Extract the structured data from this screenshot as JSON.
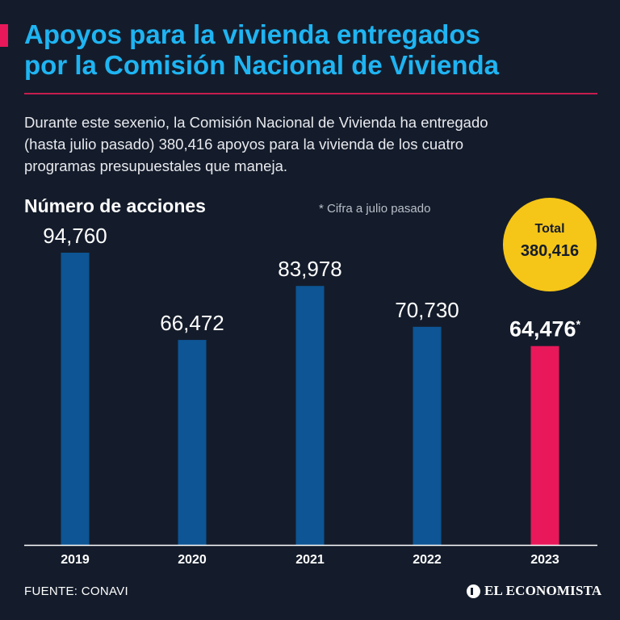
{
  "header": {
    "title_lines": [
      "Apoyos para la vivienda entregados",
      "por la Comisión Nacional de Vivienda"
    ],
    "intro_lines": [
      "Durante este sexenio, la Comisión Nacional de Vivienda ha entregado",
      "(hasta julio pasado) 380,416 apoyos para la vivienda de los cuatro",
      "programas presupuestales que maneja."
    ]
  },
  "chart_meta": {
    "subtitle": "Número de acciones",
    "footnote": "* Cifra a julio pasado",
    "total_label": "Total",
    "total_value": "380,416"
  },
  "chart_data": {
    "type": "bar",
    "title": "Número de acciones",
    "categories": [
      "2019",
      "2020",
      "2021",
      "2022",
      "2023"
    ],
    "values": [
      94760,
      66472,
      83978,
      70730,
      64476
    ],
    "labels": [
      "94,760",
      "66,472",
      "83,978",
      "70,730",
      "64,476"
    ],
    "highlight_index": 4,
    "highlight_marker": "*",
    "ylim": [
      0,
      100000
    ],
    "grid": false,
    "xlabel": "",
    "ylabel": ""
  },
  "colors": {
    "background": "#141c2b",
    "bar": "#0d5594",
    "highlight_bar": "#e8185a",
    "title": "#1fb4f2",
    "total_circle": "#f5c518",
    "axis": "#ffffff"
  },
  "footer": {
    "source": "FUENTE: CONAVI",
    "brand": "EL ECONOMISTA",
    "brand_icon": "el-economista-logo-icon"
  }
}
